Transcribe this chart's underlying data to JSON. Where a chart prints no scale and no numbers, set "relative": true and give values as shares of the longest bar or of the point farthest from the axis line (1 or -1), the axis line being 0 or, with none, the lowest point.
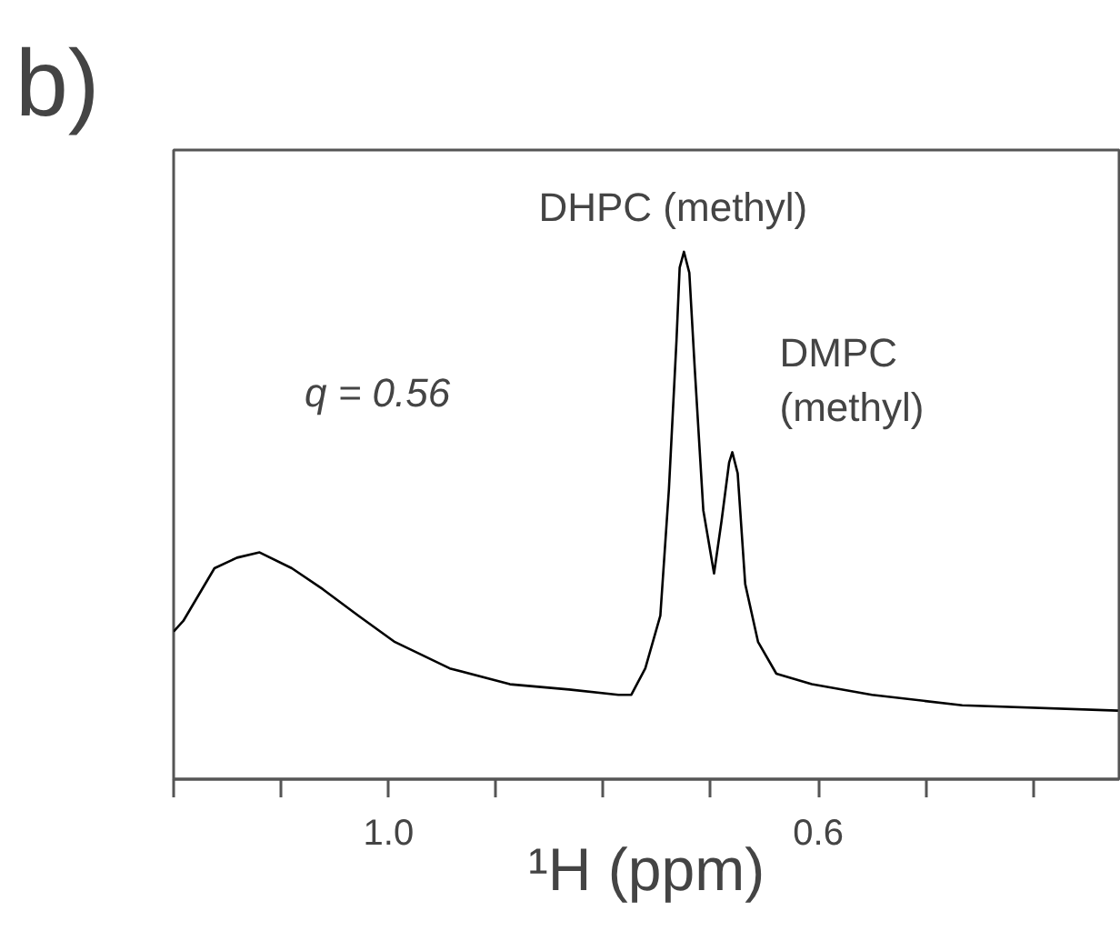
{
  "chart_data": {
    "type": "line",
    "relative": true,
    "xlabel": "¹H (ppm)",
    "xlim": [
      1.2,
      0.32
    ],
    "xticks": [
      {
        "value": 1.2,
        "label": null
      },
      {
        "value": 1.1,
        "label": null
      },
      {
        "value": 1.0,
        "label": "1.0"
      },
      {
        "value": 0.9,
        "label": null
      },
      {
        "value": 0.8,
        "label": null
      },
      {
        "value": 0.7,
        "label": null
      },
      {
        "value": 0.6,
        "label": "0.6"
      },
      {
        "value": 0.5,
        "label": null
      },
      {
        "value": 0.4,
        "label": null
      }
    ],
    "x": [
      1.2,
      1.191,
      1.162,
      1.141,
      1.12,
      1.09,
      1.061,
      1.028,
      0.994,
      0.943,
      0.887,
      0.832,
      0.786,
      0.774,
      0.761,
      0.747,
      0.739,
      0.732,
      0.729,
      0.725,
      0.72,
      0.715,
      0.707,
      0.697,
      0.69,
      0.683,
      0.68,
      0.675,
      0.668,
      0.656,
      0.639,
      0.606,
      0.55,
      0.466,
      0.321
    ],
    "series": [
      {
        "color": "#000000",
        "values": [
          0.28,
          0.3,
          0.4,
          0.42,
          0.43,
          0.4,
          0.36,
          0.31,
          0.26,
          0.21,
          0.18,
          0.17,
          0.16,
          0.16,
          0.21,
          0.31,
          0.55,
          0.83,
          0.97,
          1.0,
          0.96,
          0.78,
          0.51,
          0.39,
          0.49,
          0.6,
          0.62,
          0.58,
          0.37,
          0.26,
          0.2,
          0.18,
          0.16,
          0.14,
          0.13
        ]
      }
    ],
    "annotations": [
      "b)",
      "q = 0.56",
      {
        "text": "DHPC (methyl)",
        "x": 0.725,
        "y": 1.0
      },
      {
        "text": "DMPC\n(methyl)",
        "x": 0.68,
        "y": 0.62
      }
    ]
  }
}
